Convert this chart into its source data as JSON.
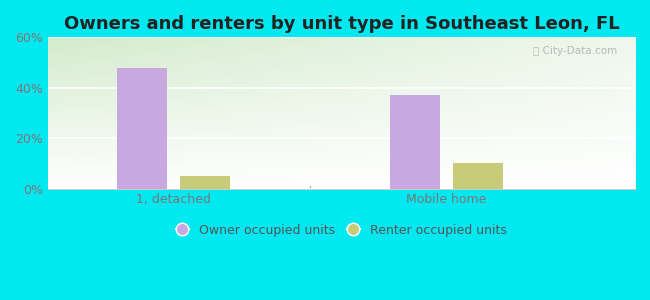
{
  "title": "Owners and renters by unit type in Southeast Leon, FL",
  "categories": [
    "1, detached",
    "Mobile home"
  ],
  "owner_values": [
    48,
    37
  ],
  "renter_values": [
    5,
    10
  ],
  "owner_color": "#c9a8e0",
  "renter_color": "#c8cc7a",
  "bg_color": "#00e8f0",
  "plot_bg_top_right": "#ffffff",
  "plot_bg_bottom_left": "#c8e6c0",
  "ylim": [
    0,
    60
  ],
  "yticks": [
    0,
    20,
    40,
    60
  ],
  "ytick_labels": [
    "0%",
    "20%",
    "40%",
    "60%"
  ],
  "bar_width": 0.12,
  "legend_owner": "Owner occupied units",
  "legend_renter": "Renter occupied units",
  "watermark": "City-Data.com",
  "title_fontsize": 13,
  "tick_fontsize": 9,
  "legend_fontsize": 9
}
